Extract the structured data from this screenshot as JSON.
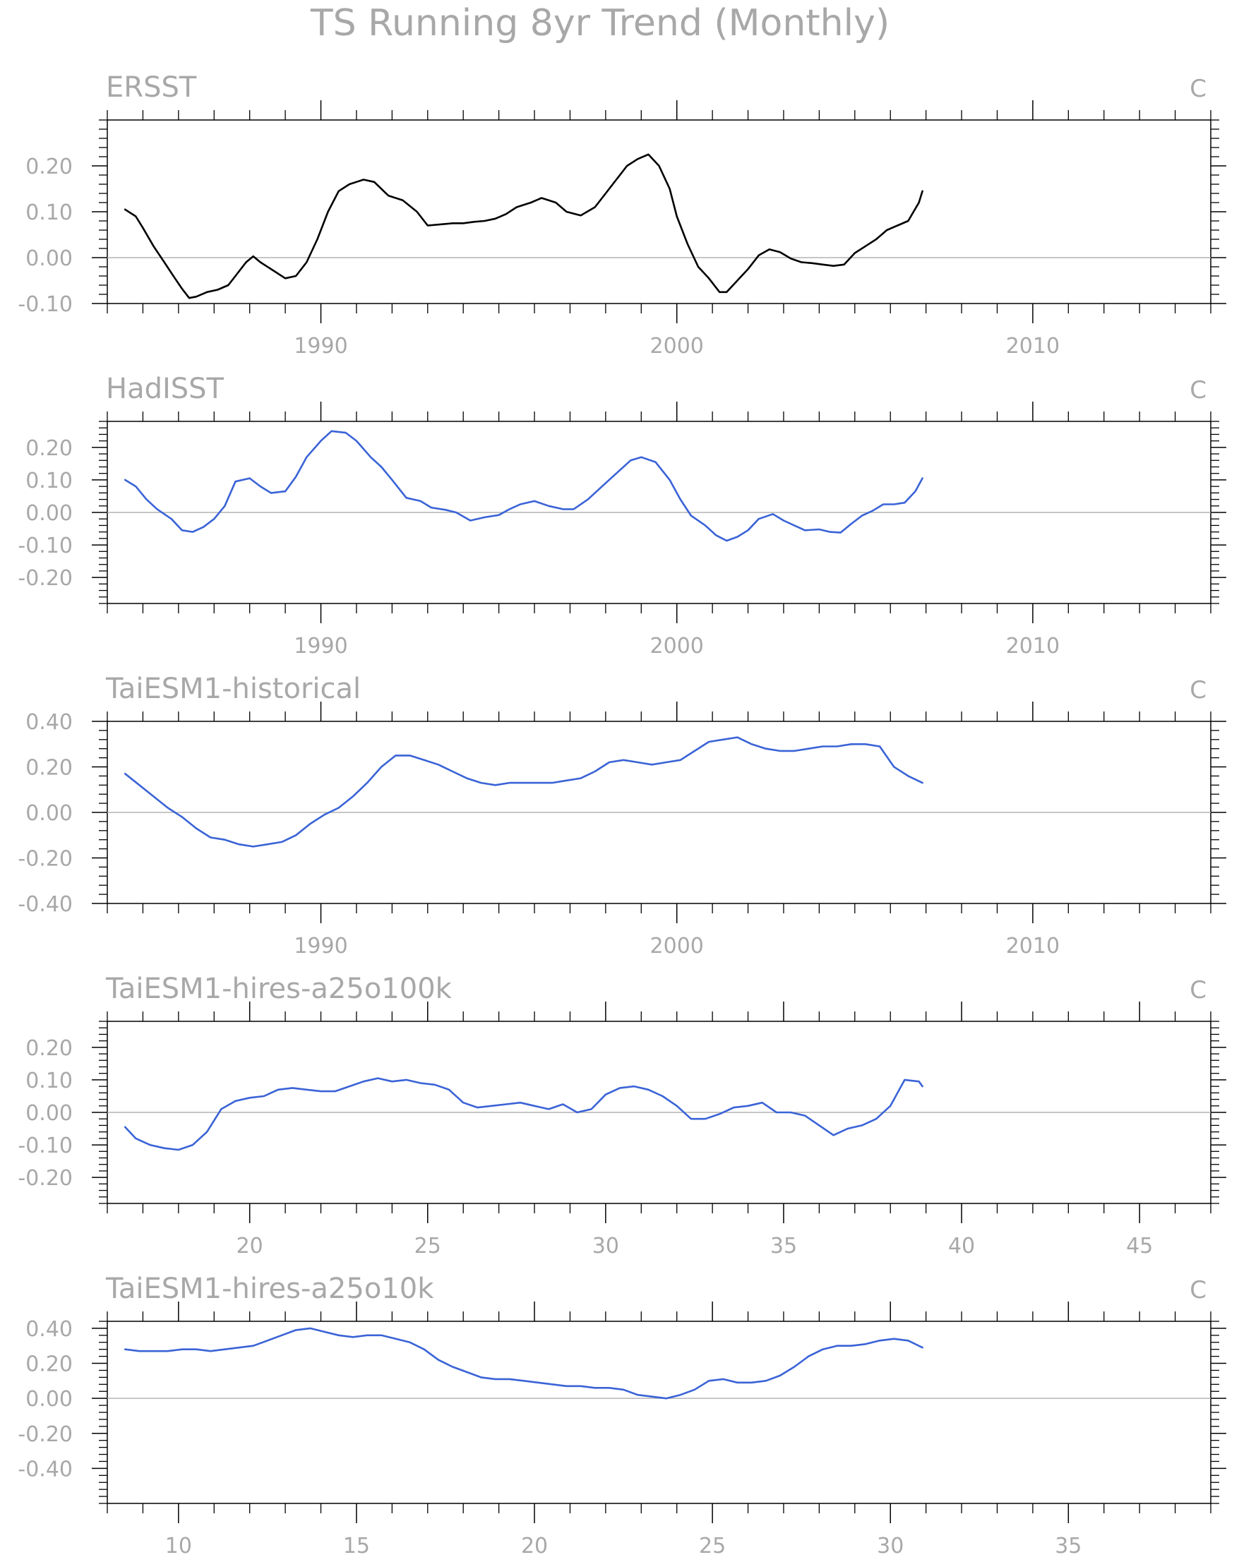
{
  "figure": {
    "title": "TS Running 8yr Trend (Monthly)"
  },
  "styles": {
    "text_color": "#a8a8a8",
    "axis_color": "#000000",
    "zero_line_color": "#b4b4b4",
    "black_line": "#000000",
    "blue_line": "#3a63d6"
  },
  "chart_data": [
    {
      "type": "line",
      "title": "ERSST",
      "units": "C",
      "line_color": "#000000",
      "xlim": [
        1984,
        2015
      ],
      "ylim": [
        -0.1,
        0.3
      ],
      "xticks": [
        1990,
        2000,
        2010
      ],
      "xtick_labels": [
        "1990",
        "2000",
        "2010"
      ],
      "x_minor": [
        1984,
        1985,
        1986,
        1987,
        1988,
        1989,
        1991,
        1992,
        1993,
        1994,
        1995,
        1996,
        1997,
        1998,
        1999,
        2001,
        2002,
        2003,
        2004,
        2005,
        2006,
        2007,
        2008,
        2009,
        2011,
        2012,
        2013,
        2014,
        2015
      ],
      "yticks": [
        -0.1,
        0.0,
        0.1,
        0.2
      ],
      "ytick_labels": [
        "-0.10",
        "0.00",
        "0.10",
        "0.20"
      ],
      "y_minor_step": 0.02,
      "zero_line": true,
      "series": [
        {
          "x": [
            1984.5,
            1984.8,
            1985.0,
            1985.3,
            1985.6,
            1985.9,
            1986.1,
            1986.3,
            1986.5,
            1986.8,
            1987.1,
            1987.4,
            1987.6,
            1987.9,
            1988.1,
            1988.3,
            1988.7,
            1989.0,
            1989.3,
            1989.6,
            1989.9,
            1990.2,
            1990.5,
            1990.8,
            1991.2,
            1991.5,
            1991.9,
            1992.3,
            1992.7,
            1993.0,
            1993.3,
            1993.7,
            1994.0,
            1994.3,
            1994.6,
            1994.9,
            1995.2,
            1995.5,
            1995.9,
            1996.2,
            1996.6,
            1996.9,
            1997.3,
            1997.7,
            1998.0,
            1998.3,
            1998.6,
            1998.9,
            1999.2,
            1999.5,
            1999.8,
            2000.0,
            2000.3,
            2000.6,
            2000.9,
            2001.2,
            2001.4,
            2001.7,
            2002.0,
            2002.3,
            2002.6,
            2002.9,
            2003.2,
            2003.5,
            2003.8,
            2004.1,
            2004.4,
            2004.7,
            2005.0,
            2005.3,
            2005.6,
            2005.9,
            2006.2,
            2006.5,
            2006.8,
            2006.9
          ],
          "y": [
            0.105,
            0.09,
            0.065,
            0.025,
            -0.01,
            -0.045,
            -0.068,
            -0.088,
            -0.085,
            -0.075,
            -0.07,
            -0.06,
            -0.04,
            -0.01,
            0.003,
            -0.01,
            -0.03,
            -0.045,
            -0.04,
            -0.01,
            0.04,
            0.1,
            0.145,
            0.16,
            0.17,
            0.165,
            0.135,
            0.125,
            0.1,
            0.07,
            0.072,
            0.075,
            0.075,
            0.078,
            0.08,
            0.085,
            0.095,
            0.11,
            0.12,
            0.13,
            0.12,
            0.1,
            0.092,
            0.11,
            0.14,
            0.17,
            0.2,
            0.215,
            0.225,
            0.2,
            0.15,
            0.09,
            0.03,
            -0.02,
            -0.045,
            -0.075,
            -0.075,
            -0.05,
            -0.025,
            0.005,
            0.018,
            0.012,
            -0.002,
            -0.01,
            -0.012,
            -0.015,
            -0.018,
            -0.015,
            0.01,
            0.025,
            0.04,
            0.06,
            0.07,
            0.08,
            0.12,
            0.145
          ]
        }
      ]
    },
    {
      "type": "line",
      "title": "HadISST",
      "units": "C",
      "line_color": "#3a63d6",
      "xlim": [
        1984,
        2015
      ],
      "ylim": [
        -0.28,
        0.28
      ],
      "xticks": [
        1990,
        2000,
        2010
      ],
      "xtick_labels": [
        "1990",
        "2000",
        "2010"
      ],
      "x_minor": [
        1984,
        1985,
        1986,
        1987,
        1988,
        1989,
        1991,
        1992,
        1993,
        1994,
        1995,
        1996,
        1997,
        1998,
        1999,
        2001,
        2002,
        2003,
        2004,
        2005,
        2006,
        2007,
        2008,
        2009,
        2011,
        2012,
        2013,
        2014,
        2015
      ],
      "yticks": [
        -0.2,
        -0.1,
        0.0,
        0.1,
        0.2
      ],
      "ytick_labels": [
        "-0.20",
        "-0.10",
        "0.00",
        "0.10",
        "0.20"
      ],
      "y_minor_step": 0.02,
      "zero_line": true,
      "series": [
        {
          "x": [
            1984.5,
            1984.8,
            1985.1,
            1985.4,
            1985.8,
            1986.1,
            1986.4,
            1986.7,
            1987.0,
            1987.3,
            1987.6,
            1988.0,
            1988.3,
            1988.6,
            1989.0,
            1989.3,
            1989.6,
            1990.0,
            1990.3,
            1990.7,
            1991.0,
            1991.4,
            1991.7,
            1992.0,
            1992.4,
            1992.8,
            1993.1,
            1993.5,
            1993.8,
            1994.2,
            1994.6,
            1995.0,
            1995.3,
            1995.6,
            1996.0,
            1996.4,
            1996.8,
            1997.1,
            1997.5,
            1997.9,
            1998.3,
            1998.7,
            1999.0,
            1999.4,
            1999.8,
            2000.1,
            2000.4,
            2000.8,
            2001.1,
            2001.4,
            2001.7,
            2002.0,
            2002.3,
            2002.7,
            2003.0,
            2003.3,
            2003.6,
            2004.0,
            2004.3,
            2004.6,
            2004.9,
            2005.2,
            2005.5,
            2005.8,
            2006.1,
            2006.4,
            2006.7,
            2006.9
          ],
          "y": [
            0.1,
            0.08,
            0.04,
            0.01,
            -0.02,
            -0.055,
            -0.06,
            -0.045,
            -0.02,
            0.02,
            0.095,
            0.105,
            0.08,
            0.06,
            0.065,
            0.11,
            0.17,
            0.22,
            0.25,
            0.245,
            0.22,
            0.17,
            0.14,
            0.1,
            0.045,
            0.035,
            0.015,
            0.008,
            0.0,
            -0.025,
            -0.015,
            -0.008,
            0.01,
            0.025,
            0.035,
            0.02,
            0.01,
            0.01,
            0.04,
            0.08,
            0.12,
            0.16,
            0.17,
            0.155,
            0.1,
            0.04,
            -0.01,
            -0.04,
            -0.07,
            -0.087,
            -0.075,
            -0.055,
            -0.02,
            -0.005,
            -0.025,
            -0.04,
            -0.055,
            -0.052,
            -0.06,
            -0.062,
            -0.035,
            -0.01,
            0.005,
            0.025,
            0.025,
            0.03,
            0.065,
            0.105
          ]
        }
      ]
    },
    {
      "type": "line",
      "title": "TaiESM1-historical",
      "units": "C",
      "line_color": "#3a63d6",
      "xlim": [
        1984,
        2015
      ],
      "ylim": [
        -0.4,
        0.4
      ],
      "xticks": [
        1990,
        2000,
        2010
      ],
      "xtick_labels": [
        "1990",
        "2000",
        "2010"
      ],
      "x_minor": [
        1984,
        1985,
        1986,
        1987,
        1988,
        1989,
        1991,
        1992,
        1993,
        1994,
        1995,
        1996,
        1997,
        1998,
        1999,
        2001,
        2002,
        2003,
        2004,
        2005,
        2006,
        2007,
        2008,
        2009,
        2011,
        2012,
        2013,
        2014,
        2015
      ],
      "yticks": [
        -0.4,
        -0.2,
        0.0,
        0.2,
        0.4
      ],
      "ytick_labels": [
        "-0.40",
        "-0.20",
        "0.00",
        "0.20",
        "0.40"
      ],
      "y_minor_step": 0.04,
      "zero_line": true,
      "series": [
        {
          "x": [
            1984.5,
            1984.9,
            1985.3,
            1985.7,
            1986.1,
            1986.5,
            1986.9,
            1987.3,
            1987.7,
            1988.1,
            1988.5,
            1988.9,
            1989.3,
            1989.7,
            1990.1,
            1990.5,
            1990.9,
            1991.3,
            1991.7,
            1992.1,
            1992.5,
            1992.9,
            1993.3,
            1993.7,
            1994.1,
            1994.5,
            1994.9,
            1995.3,
            1995.7,
            1996.1,
            1996.5,
            1996.9,
            1997.3,
            1997.7,
            1998.1,
            1998.5,
            1998.9,
            1999.3,
            1999.7,
            2000.1,
            2000.5,
            2000.9,
            2001.3,
            2001.7,
            2002.1,
            2002.5,
            2002.9,
            2003.3,
            2003.7,
            2004.1,
            2004.5,
            2004.9,
            2005.3,
            2005.7,
            2006.1,
            2006.5,
            2006.9
          ],
          "y": [
            0.17,
            0.12,
            0.07,
            0.02,
            -0.02,
            -0.07,
            -0.11,
            -0.12,
            -0.14,
            -0.15,
            -0.14,
            -0.13,
            -0.1,
            -0.05,
            -0.01,
            0.02,
            0.07,
            0.13,
            0.2,
            0.25,
            0.25,
            0.23,
            0.21,
            0.18,
            0.15,
            0.13,
            0.12,
            0.13,
            0.13,
            0.13,
            0.13,
            0.14,
            0.15,
            0.18,
            0.22,
            0.23,
            0.22,
            0.21,
            0.22,
            0.23,
            0.27,
            0.31,
            0.32,
            0.33,
            0.3,
            0.28,
            0.27,
            0.27,
            0.28,
            0.29,
            0.29,
            0.3,
            0.3,
            0.29,
            0.2,
            0.16,
            0.13
          ]
        }
      ]
    },
    {
      "type": "line",
      "title": "TaiESM1-hires-a25o100k",
      "units": "C",
      "line_color": "#3a63d6",
      "xlim": [
        16,
        47
      ],
      "ylim": [
        -0.28,
        0.28
      ],
      "xticks": [
        20,
        25,
        30,
        35,
        40,
        45
      ],
      "xtick_labels": [
        "20",
        "25",
        "30",
        "35",
        "40",
        "45"
      ],
      "x_minor": [
        16,
        17,
        18,
        19,
        21,
        22,
        23,
        24,
        26,
        27,
        28,
        29,
        31,
        32,
        33,
        34,
        36,
        37,
        38,
        39,
        41,
        42,
        43,
        44,
        46,
        47
      ],
      "yticks": [
        -0.2,
        -0.1,
        0.0,
        0.1,
        0.2
      ],
      "ytick_labels": [
        "-0.20",
        "-0.10",
        "0.00",
        "0.10",
        "0.20"
      ],
      "y_minor_step": 0.02,
      "zero_line": true,
      "series": [
        {
          "x": [
            16.5,
            16.8,
            17.2,
            17.6,
            18.0,
            18.4,
            18.8,
            19.2,
            19.6,
            20.0,
            20.4,
            20.8,
            21.2,
            21.6,
            22.0,
            22.4,
            22.8,
            23.2,
            23.6,
            24.0,
            24.4,
            24.8,
            25.2,
            25.6,
            26.0,
            26.4,
            26.8,
            27.2,
            27.6,
            28.0,
            28.4,
            28.8,
            29.2,
            29.6,
            30.0,
            30.4,
            30.8,
            31.2,
            31.6,
            32.0,
            32.4,
            32.8,
            33.2,
            33.6,
            34.0,
            34.4,
            34.8,
            35.2,
            35.6,
            36.0,
            36.4,
            36.8,
            37.2,
            37.6,
            38.0,
            38.4,
            38.8,
            38.9
          ],
          "y": [
            -0.045,
            -0.08,
            -0.1,
            -0.11,
            -0.115,
            -0.1,
            -0.06,
            0.01,
            0.035,
            0.045,
            0.05,
            0.07,
            0.075,
            0.07,
            0.065,
            0.065,
            0.08,
            0.095,
            0.105,
            0.095,
            0.1,
            0.09,
            0.085,
            0.07,
            0.03,
            0.015,
            0.02,
            0.025,
            0.03,
            0.02,
            0.01,
            0.025,
            0.0,
            0.01,
            0.055,
            0.075,
            0.08,
            0.07,
            0.05,
            0.02,
            -0.02,
            -0.02,
            -0.005,
            0.015,
            0.02,
            0.03,
            0.0,
            0.0,
            -0.01,
            -0.04,
            -0.07,
            -0.05,
            -0.04,
            -0.02,
            0.02,
            0.1,
            0.095,
            0.08
          ]
        }
      ]
    },
    {
      "type": "line",
      "title": "TaiESM1-hires-a25o10k",
      "units": "C",
      "line_color": "#3a63d6",
      "xlim": [
        8,
        39
      ],
      "ylim": [
        -0.6,
        0.44
      ],
      "xticks": [
        10,
        15,
        20,
        25,
        30,
        35
      ],
      "xtick_labels": [
        "10",
        "15",
        "20",
        "25",
        "30",
        "35"
      ],
      "x_minor": [
        8,
        9,
        11,
        12,
        13,
        14,
        16,
        17,
        18,
        19,
        21,
        22,
        23,
        24,
        26,
        27,
        28,
        29,
        31,
        32,
        33,
        34,
        36,
        37,
        38,
        39
      ],
      "yticks": [
        -0.4,
        -0.2,
        0.0,
        0.2,
        0.4
      ],
      "ytick_labels": [
        "-0.40",
        "-0.20",
        "0.00",
        "0.20",
        "0.40"
      ],
      "y_minor_step": 0.04,
      "zero_line": true,
      "series": [
        {
          "x": [
            8.5,
            8.9,
            9.3,
            9.7,
            10.1,
            10.5,
            10.9,
            11.3,
            11.7,
            12.1,
            12.5,
            12.9,
            13.3,
            13.7,
            14.1,
            14.5,
            14.9,
            15.3,
            15.7,
            16.1,
            16.5,
            16.9,
            17.3,
            17.7,
            18.1,
            18.5,
            18.9,
            19.3,
            19.7,
            20.1,
            20.5,
            20.9,
            21.3,
            21.7,
            22.1,
            22.5,
            22.9,
            23.3,
            23.7,
            24.1,
            24.5,
            24.9,
            25.3,
            25.7,
            26.1,
            26.5,
            26.9,
            27.3,
            27.7,
            28.1,
            28.5,
            28.9,
            29.3,
            29.7,
            30.1,
            30.5,
            30.9
          ],
          "y": [
            0.28,
            0.27,
            0.27,
            0.27,
            0.28,
            0.28,
            0.27,
            0.28,
            0.29,
            0.3,
            0.33,
            0.36,
            0.39,
            0.4,
            0.38,
            0.36,
            0.35,
            0.36,
            0.36,
            0.34,
            0.32,
            0.28,
            0.22,
            0.18,
            0.15,
            0.12,
            0.11,
            0.11,
            0.1,
            0.09,
            0.08,
            0.07,
            0.07,
            0.06,
            0.06,
            0.05,
            0.02,
            0.01,
            0.0,
            0.02,
            0.05,
            0.1,
            0.11,
            0.09,
            0.09,
            0.1,
            0.13,
            0.18,
            0.24,
            0.28,
            0.3,
            0.3,
            0.31,
            0.33,
            0.34,
            0.33,
            0.29
          ]
        }
      ]
    }
  ]
}
